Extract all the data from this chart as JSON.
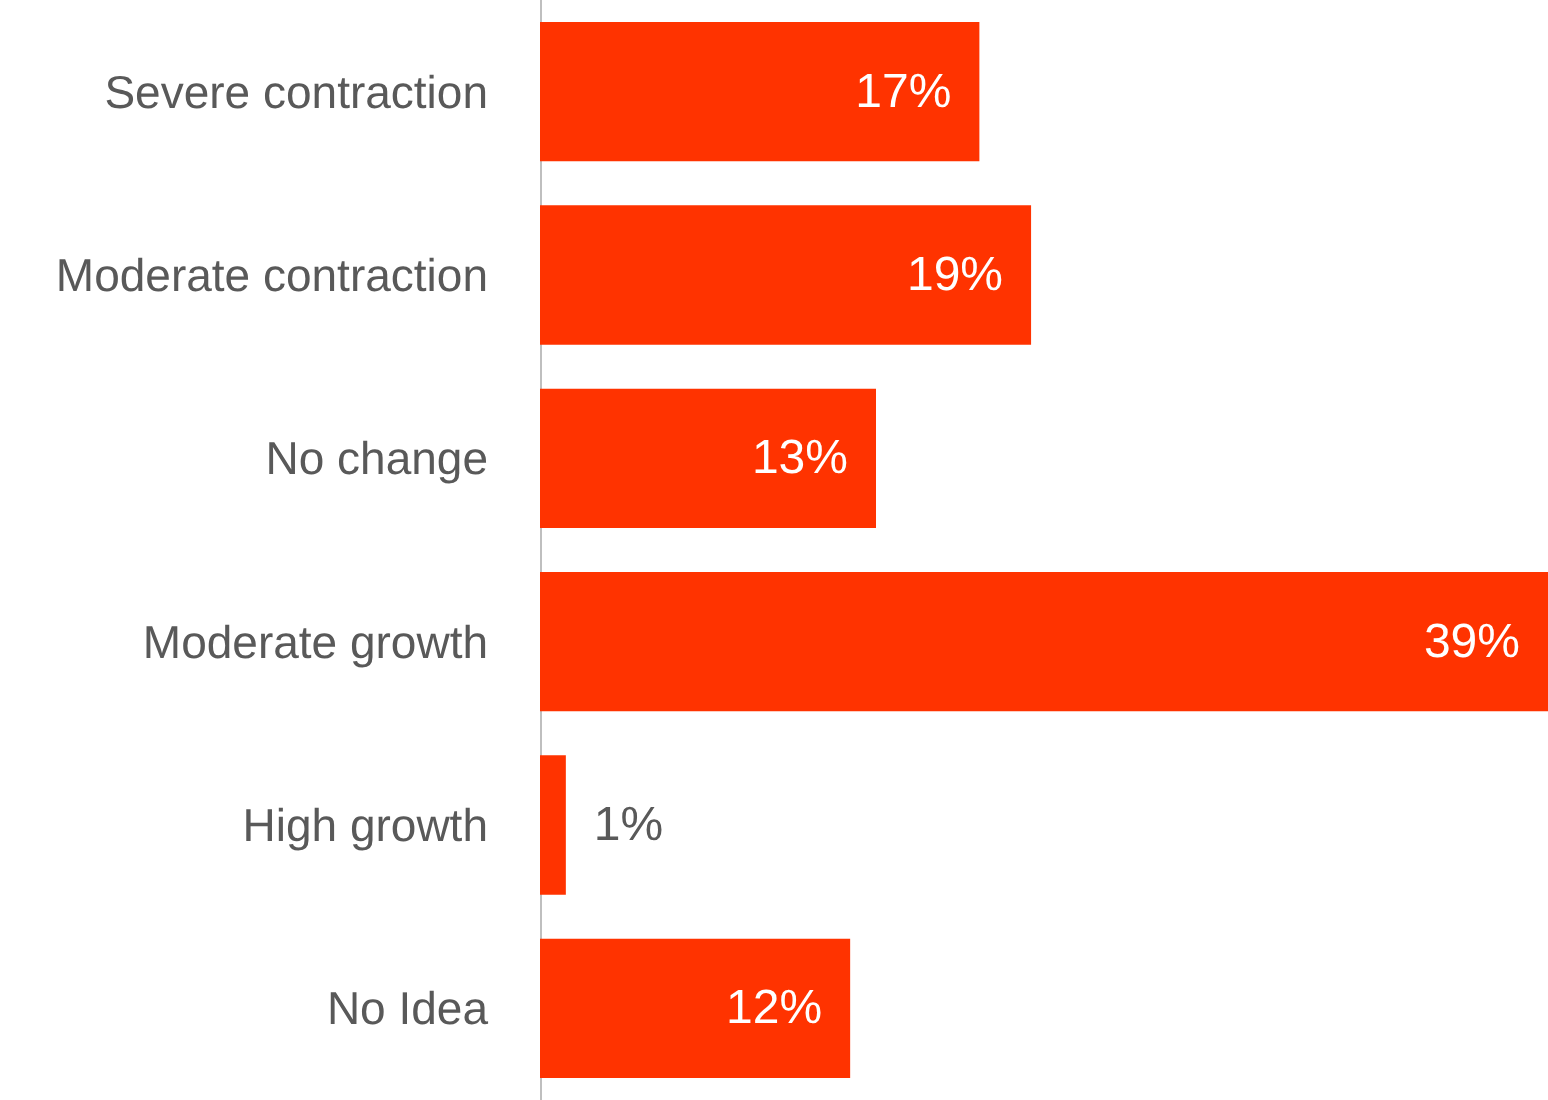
{
  "chart_data": {
    "type": "bar",
    "orientation": "horizontal",
    "categories": [
      "Severe contraction",
      "Moderate contraction",
      "No change",
      "Moderate growth",
      "High growth",
      "No Idea"
    ],
    "values": [
      17,
      19,
      13,
      39,
      1,
      12
    ],
    "color": "#ff3300",
    "value_labels": [
      "17%",
      "19%",
      "13%",
      "39%",
      "1%",
      "12%"
    ]
  }
}
